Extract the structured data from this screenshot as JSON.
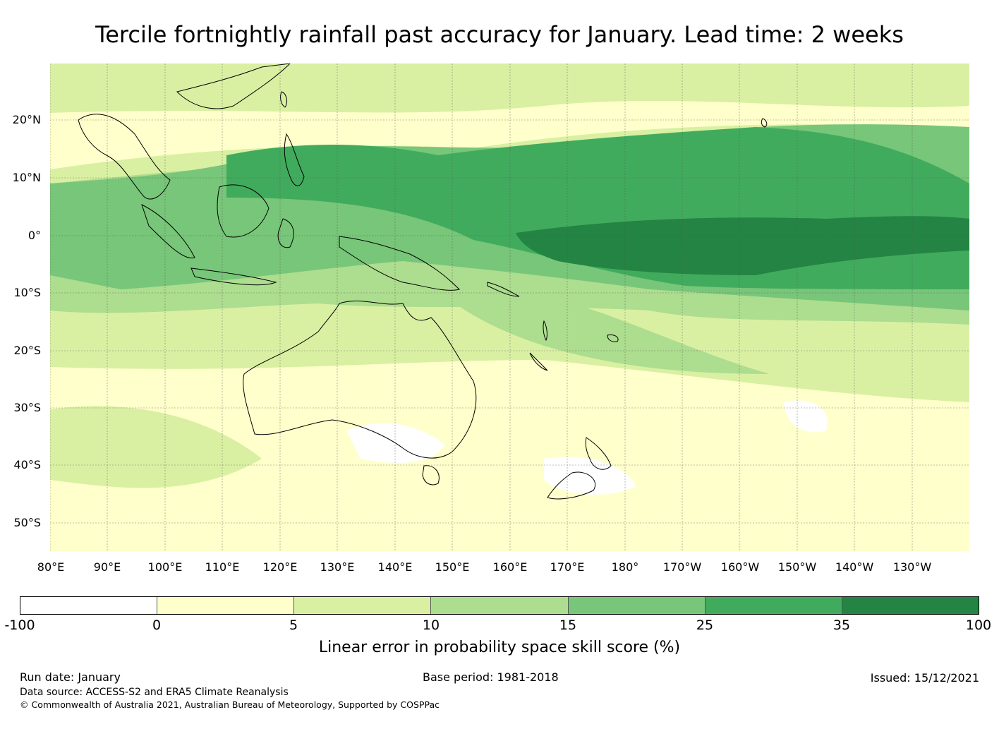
{
  "title": "Tercile fortnightly rainfall past accuracy for January. Lead time: 2 weeks",
  "map": {
    "lat_labels": [
      "20°N",
      "10°N",
      "0°",
      "10°S",
      "20°S",
      "30°S",
      "40°S",
      "50°S"
    ],
    "lon_labels": [
      "80°E",
      "90°E",
      "100°E",
      "110°E",
      "120°E",
      "130°E",
      "140°E",
      "150°E",
      "160°E",
      "170°E",
      "180°",
      "170°W",
      "160°W",
      "150°W",
      "140°W",
      "130°W"
    ],
    "lon_range": [
      80,
      240
    ],
    "lat_range": [
      -55,
      30
    ],
    "grid": "dashed"
  },
  "colorbar": {
    "ticks": [
      "-100",
      "0",
      "5",
      "10",
      "15",
      "25",
      "35",
      "100"
    ],
    "colors": [
      "#ffffff",
      "#ffffcc",
      "#d9f0a3",
      "#addd8e",
      "#78c679",
      "#41ab5d",
      "#238443"
    ],
    "label": "Linear error in probability space skill score (%)"
  },
  "footer": {
    "run_date": "Run date: January",
    "base_period": "Base period: 1981-2018",
    "issued": "Issued: 15/12/2021",
    "data_source": "Data source: ACCESS-S2 and ERA5 Climate Reanalysis",
    "copyright": "© Commonwealth of Australia 2021, Australian Bureau of Meteorology, Supported by COSPPac"
  }
}
